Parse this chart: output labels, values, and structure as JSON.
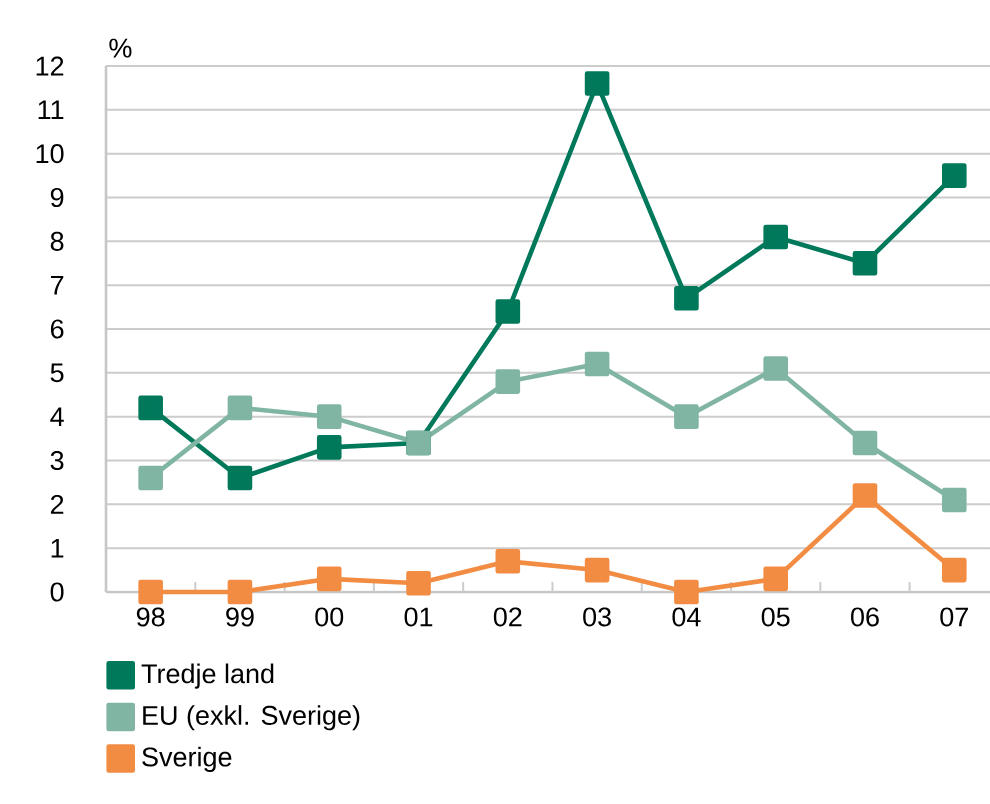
{
  "chart_data": {
    "type": "line",
    "ylabel": "%",
    "categories": [
      "98",
      "99",
      "00",
      "01",
      "02",
      "03",
      "04",
      "05",
      "06",
      "07"
    ],
    "series": [
      {
        "name": "Tredje land",
        "color": "#00785a",
        "values": [
          4.2,
          2.6,
          3.3,
          3.4,
          6.4,
          11.6,
          6.7,
          8.1,
          7.5,
          9.5
        ]
      },
      {
        "name": "EU (exkl. Sverige)",
        "color": "#80b5a4",
        "values": [
          2.6,
          4.2,
          4.0,
          3.4,
          4.8,
          5.2,
          4.0,
          5.1,
          3.4,
          2.1
        ]
      },
      {
        "name": "Sverige",
        "color": "#f28c43",
        "values": [
          0,
          0,
          0.3,
          0.2,
          0.7,
          0.5,
          0,
          0.3,
          2.2,
          0.5
        ]
      }
    ],
    "ylim": [
      0,
      12
    ],
    "yticks": [
      0,
      1,
      2,
      3,
      4,
      5,
      6,
      7,
      8,
      9,
      10,
      11,
      12
    ],
    "grid": "y",
    "legend": "bottom",
    "marker": "square",
    "line_style": "solid"
  }
}
